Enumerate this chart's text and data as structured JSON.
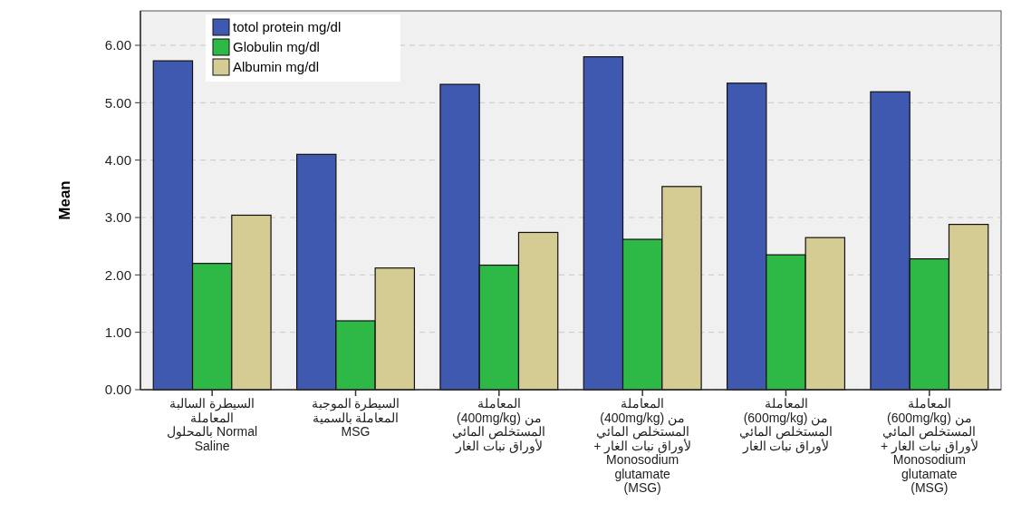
{
  "chart_data": {
    "type": "bar",
    "ylabel": "Mean",
    "categories": [
      "السيطرة السالبة\nالمعاملة\nNormal بالمحلول\nSaline",
      "السيطرة الموجبة\nالمعاملة بالسمية\nMSG",
      "المعاملة\nمن (400mg/kg)\nالمستخلص المائي\nلأوراق نبات الغار",
      "المعاملة\nمن (400mg/kg)\nالمستخلص المائي\nلأوراق نبات الغار +\nMonosodium\nglutamate\n(MSG)",
      "المعاملة\nمن (600mg/kg)\nالمستخلص المائي\nلأوراق نبات الغار",
      "المعاملة\nمن (600mg/kg)\nالمستخلص المائي\nلأوراق نبات الغار +\nMonosodium\nglutamate\n(MSG)"
    ],
    "series": [
      {
        "name": "totol protein  mg/dl",
        "color": "#3f58b0",
        "values": [
          5.73,
          4.1,
          5.32,
          5.8,
          5.34,
          5.19
        ]
      },
      {
        "name": "Globulin  mg/dl",
        "color": "#2eb845",
        "values": [
          2.2,
          1.2,
          2.17,
          2.62,
          2.35,
          2.28
        ]
      },
      {
        "name": "Albumin mg/dl",
        "color": "#d5cc93",
        "values": [
          3.04,
          2.12,
          2.74,
          3.54,
          2.65,
          2.88
        ]
      }
    ],
    "ylim": [
      0,
      6.6
    ],
    "yticks": [
      {
        "value": 0,
        "label": "0.00"
      },
      {
        "value": 1,
        "label": "1.00"
      },
      {
        "value": 2,
        "label": "2.00"
      },
      {
        "value": 3,
        "label": "3.00"
      },
      {
        "value": 4,
        "label": "4.00"
      },
      {
        "value": 5,
        "label": "5.00"
      },
      {
        "value": 6,
        "label": "6.00"
      }
    ],
    "grid": "y",
    "legend": "top left"
  }
}
